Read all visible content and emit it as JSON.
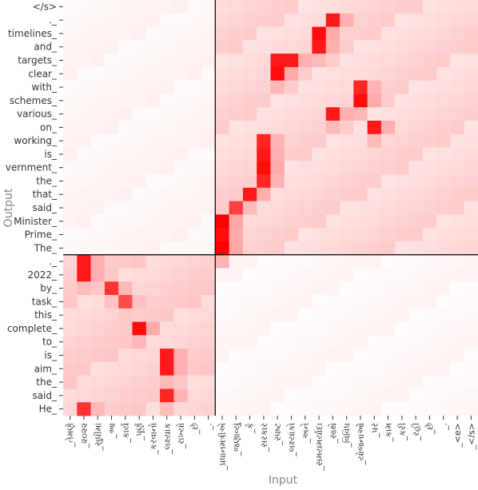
{
  "chart_data": {
    "type": "heatmap",
    "xlabel": "Input",
    "ylabel": "Output",
    "y_tokens": [
      "</s>",
      "._",
      "timelines_",
      "and_",
      "targets_",
      "clear_",
      "with_",
      "schemes_",
      "various_",
      "on_",
      "working_",
      "is_",
      "vernment_",
      "the_",
      "that_",
      "said_",
      "Minister_",
      "Prime_",
      "The_",
      "._",
      "2022_",
      "by_",
      "task_",
      "this_",
      "complete_",
      "to_",
      "is_",
      "aim_",
      "the_",
      "said_",
      "He_"
    ],
    "x_tokens": [
      "_તેમણે",
      "_૨૦૨૨",
      "_સુધીમાં",
      "_આ",
      "_કાર્ય",
      "_પૂર્ણ",
      "_કરવાનો",
      "_લક્ષ્યાંક",
      "_રાખ્યો",
      "_છે",
      "_.",
      "_પ્રધાનમંત્રીએ",
      "_જણાવ્યું",
      "_કે",
      "_સરકાર",
      "_સ્પષ્ટ",
      "_લક્ષ્યાંકો",
      "_અને",
      "_સમયમર્યાદા",
      "_સાથે",
      "_વિવિધ",
      "_યોજનાઓ",
      "_પર",
      "_કામ",
      "_કરી",
      "_રહી",
      "_છે",
      "_.",
      "_<e>",
      "_</s>"
    ],
    "split_row_after": 19,
    "split_col_after": 11,
    "color_scale": {
      "low": "#ffffff",
      "high": "#ff0000"
    },
    "attention_peaks": [
      {
        "output": "The_",
        "input": "_પ્રધાનમંત્રીએ",
        "weight": 1.0
      },
      {
        "output": "Prime_",
        "input": "_પ્રધાનમંત્રીએ",
        "weight": 0.95
      },
      {
        "output": "Minister_",
        "input": "_પ્રધાનમંત્રીએ",
        "weight": 1.0
      },
      {
        "output": "said_",
        "input": "_જણાવ્યું",
        "weight": 0.75
      },
      {
        "output": "that_",
        "input": "_કે",
        "weight": 0.9
      },
      {
        "output": "the_",
        "input": "_સરકાર",
        "weight": 0.85
      },
      {
        "output": "vernment_",
        "input": "_સરકાર",
        "weight": 0.95
      },
      {
        "output": "is_",
        "input": "_સરકાર",
        "weight": 0.9
      },
      {
        "output": "working_",
        "input": "_સરકાર",
        "weight": 0.85
      },
      {
        "output": "clear_",
        "input": "_સ્પષ્ટ",
        "weight": 0.95
      },
      {
        "output": "targets_",
        "input": "_સ્પષ્ટ",
        "weight": 0.9
      },
      {
        "output": "targets_",
        "input": "_લક્ષ્યાંકો",
        "weight": 0.9
      },
      {
        "output": "and_",
        "input": "_સમયમર્યાદા",
        "weight": 0.9
      },
      {
        "output": "timelines_",
        "input": "_સમયમર્યાદા",
        "weight": 0.95
      },
      {
        "output": "._",
        "input": "_સાથે",
        "weight": 0.9
      },
      {
        "output": "with_",
        "input": "_યોજનાઓ",
        "weight": 0.85
      },
      {
        "output": "schemes_",
        "input": "_યોજનાઓ",
        "weight": 0.95
      },
      {
        "output": "various_",
        "input": "_સાથે",
        "weight": 0.9
      },
      {
        "output": "on_",
        "input": "_પર",
        "weight": 0.9
      },
      {
        "output": "He_",
        "input": "_૨૦૨૨",
        "weight": 0.8
      },
      {
        "output": "said_",
        "input": "_લક્ષ્યાંક",
        "weight": 0.85
      },
      {
        "output": "aim_",
        "input": "_લક્ષ્યાંક",
        "weight": 0.9
      },
      {
        "output": "is_",
        "input": "_લક્ષ્યાંક",
        "weight": 0.9
      },
      {
        "output": "complete_",
        "input": "_પૂર્ણ",
        "weight": 0.95
      },
      {
        "output": "task_",
        "input": "_કાર્ય",
        "weight": 0.7
      },
      {
        "output": "by_",
        "input": "_આ",
        "weight": 0.8
      },
      {
        "output": "2022_",
        "input": "_૨૦૨૨",
        "weight": 0.9
      },
      {
        "output": "._",
        "input": "_૨૦૨૨",
        "weight": 0.9
      }
    ]
  }
}
